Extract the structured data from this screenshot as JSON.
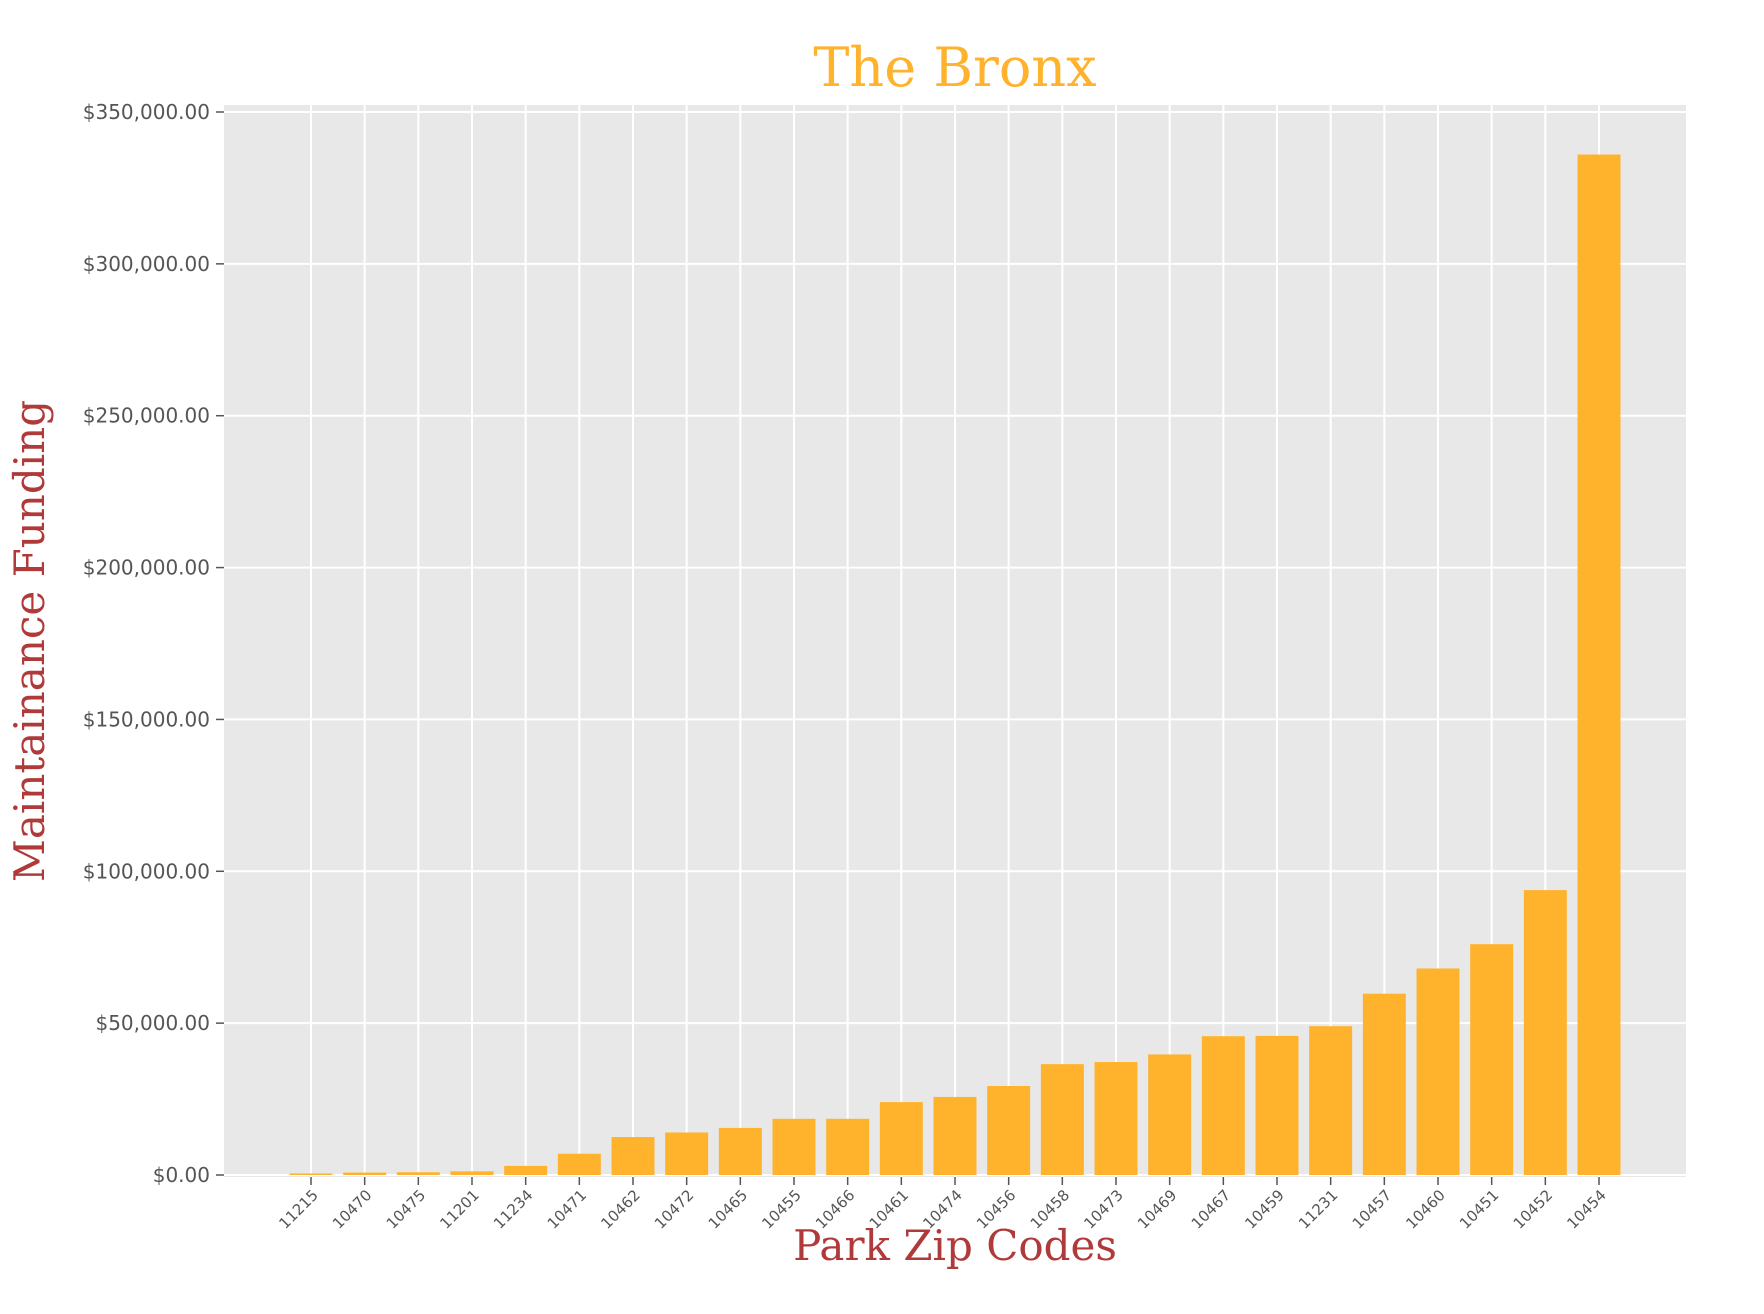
{
  "chart_data": {
    "type": "bar",
    "title": "The Bronx",
    "xlabel": "Park Zip Codes",
    "ylabel": "Maintainance Funding",
    "ylim": [
      0,
      350000
    ],
    "yticks": [
      0,
      50000,
      100000,
      150000,
      200000,
      250000,
      300000,
      350000
    ],
    "ytick_labels": [
      "$0.00",
      "$50,000.00",
      "$100,000.00",
      "$150,000.00",
      "$200,000.00",
      "$250,000.00",
      "$300,000.00",
      "$350,000.00"
    ],
    "grid": true,
    "legend": "none",
    "categories": [
      "11215",
      "10470",
      "10475",
      "11201",
      "11234",
      "10471",
      "10462",
      "10472",
      "10465",
      "10455",
      "10466",
      "10461",
      "10474",
      "10456",
      "10458",
      "10473",
      "10469",
      "10467",
      "10459",
      "11231",
      "10457",
      "10460",
      "10451",
      "10452",
      "10454"
    ],
    "values": [
      500,
      800,
      900,
      1200,
      3000,
      7000,
      12500,
      14000,
      15500,
      18500,
      18500,
      24000,
      25700,
      29300,
      36500,
      37200,
      39700,
      45700,
      45800,
      49000,
      59700,
      68000,
      76000,
      93800,
      336000
    ],
    "colors": {
      "bar": "#ffb22b",
      "title": "#ffb22b",
      "axis_label": "#b03a3a",
      "tick_label": "#555555",
      "plot_background": "#e8e8e8",
      "grid": "#ffffff"
    }
  }
}
